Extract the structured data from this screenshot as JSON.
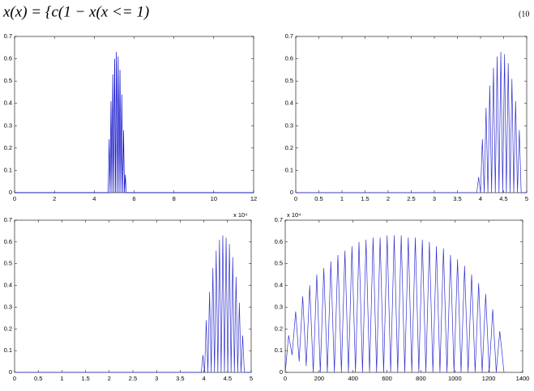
{
  "equation": {
    "text": "x(x) = {c(1 − x(x <= 1)",
    "number": "(10"
  },
  "chart_data": [
    {
      "type": "line",
      "color": "#0000c8",
      "x": [
        0,
        4.7,
        4.75,
        4.795,
        4.84,
        4.885,
        4.93,
        4.975,
        5.02,
        5.065,
        5.11,
        5.155,
        5.2,
        5.245,
        5.29,
        5.335,
        5.38,
        5.425,
        5.47,
        5.515,
        5.56,
        5.6,
        12
      ],
      "values": [
        0,
        0,
        0.24,
        0,
        0.41,
        0,
        0.53,
        0,
        0.6,
        0,
        0.63,
        0,
        0.61,
        0,
        0.55,
        0,
        0.44,
        0,
        0.28,
        0,
        0.08,
        0,
        0
      ],
      "xlim": [
        0,
        12
      ],
      "xticks": [
        0,
        2,
        4,
        6,
        8,
        10,
        12
      ],
      "ylim": [
        0,
        0.7
      ],
      "yticks": [
        0,
        0.1,
        0.2,
        0.3,
        0.4,
        0.5,
        0.6,
        0.7
      ]
    },
    {
      "type": "line",
      "color": "#3030d0",
      "x": [
        0,
        3.92,
        3.96,
        4.0,
        4.04,
        4.08,
        4.12,
        4.16,
        4.2,
        4.24,
        4.28,
        4.32,
        4.36,
        4.4,
        4.44,
        4.48,
        4.52,
        4.56,
        4.6,
        4.64,
        4.68,
        4.72,
        4.76,
        4.8,
        4.84,
        4.88,
        5
      ],
      "values": [
        0,
        0,
        0.07,
        0,
        0.24,
        0,
        0.38,
        0,
        0.48,
        0,
        0.56,
        0,
        0.61,
        0,
        0.63,
        0,
        0.62,
        0,
        0.58,
        0,
        0.51,
        0,
        0.41,
        0,
        0.28,
        0,
        0
      ],
      "xlim": [
        0,
        5
      ],
      "xticks": [
        0,
        0.5,
        1,
        1.5,
        2,
        2.5,
        3,
        3.5,
        4,
        4.5,
        5
      ],
      "ylim": [
        0,
        0.7
      ],
      "yticks": [
        0,
        0.1,
        0.2,
        0.3,
        0.4,
        0.5,
        0.6,
        0.7
      ]
    },
    {
      "type": "line",
      "color": "#3030d0",
      "x": [
        0,
        3.945,
        3.98,
        4.015,
        4.05,
        4.085,
        4.12,
        4.155,
        4.19,
        4.225,
        4.26,
        4.295,
        4.33,
        4.365,
        4.4,
        4.435,
        4.47,
        4.505,
        4.54,
        4.575,
        4.61,
        4.645,
        4.68,
        4.715,
        4.75,
        4.785,
        4.82,
        4.855,
        5
      ],
      "values": [
        0,
        0,
        0.08,
        0,
        0.24,
        0,
        0.37,
        0,
        0.48,
        0,
        0.56,
        0,
        0.61,
        0,
        0.63,
        0,
        0.62,
        0,
        0.59,
        0,
        0.53,
        0,
        0.44,
        0,
        0.32,
        0,
        0.17,
        0,
        0
      ],
      "xlim": [
        0,
        5
      ],
      "xticks": [
        0,
        0.5,
        1,
        1.5,
        2,
        2.5,
        3,
        3.5,
        4,
        4.5,
        5
      ],
      "ylim": [
        0,
        0.7
      ],
      "yticks": [
        0,
        0.1,
        0.2,
        0.3,
        0.4,
        0.5,
        0.6,
        0.7
      ],
      "multiplier": "x 10⁴",
      "multiplier_position": "top-right"
    },
    {
      "type": "line",
      "color": "#3030d0",
      "x": [
        0,
        20,
        40.75,
        61.5,
        82.25,
        103,
        123.75,
        144.5,
        165.25,
        186,
        206.75,
        227.5,
        248.25,
        269,
        289.75,
        310.5,
        331.25,
        352,
        372.75,
        393.5,
        414.25,
        435,
        455.75,
        476.5,
        497.25,
        518,
        538.75,
        559.5,
        580.25,
        601,
        621.75,
        642.5,
        663.25,
        684,
        704.75,
        725.5,
        746.25,
        767,
        787.75,
        808.5,
        829.25,
        850,
        870.75,
        891.5,
        912.25,
        933,
        953.75,
        974.5,
        995.25,
        1016,
        1036.75,
        1057.5,
        1078.25,
        1099,
        1119.75,
        1140.5,
        1161.25,
        1182,
        1202.75,
        1223.5,
        1244.25,
        1265,
        1290
      ],
      "values": [
        0,
        0.17,
        0.08,
        0.28,
        0.05,
        0.35,
        0.03,
        0.4,
        0,
        0.45,
        0,
        0.48,
        0,
        0.51,
        0,
        0.54,
        0,
        0.56,
        0,
        0.58,
        0,
        0.6,
        0,
        0.61,
        0,
        0.62,
        0,
        0.62,
        0,
        0.63,
        0,
        0.63,
        0,
        0.63,
        0,
        0.62,
        0,
        0.62,
        0,
        0.61,
        0,
        0.6,
        0,
        0.58,
        0,
        0.57,
        0,
        0.54,
        0,
        0.52,
        0,
        0.49,
        0,
        0.45,
        0,
        0.41,
        0,
        0.36,
        0,
        0.29,
        0,
        0.19,
        0
      ],
      "xlim": [
        0,
        1400
      ],
      "xticks": [
        0,
        200,
        400,
        600,
        800,
        1000,
        1200,
        1400
      ],
      "ylim": [
        0,
        0.7
      ],
      "yticks": [
        0,
        0.1,
        0.2,
        0.3,
        0.4,
        0.5,
        0.6,
        0.7
      ],
      "multiplier": "x 10⁴",
      "multiplier_position": "top-left"
    }
  ]
}
